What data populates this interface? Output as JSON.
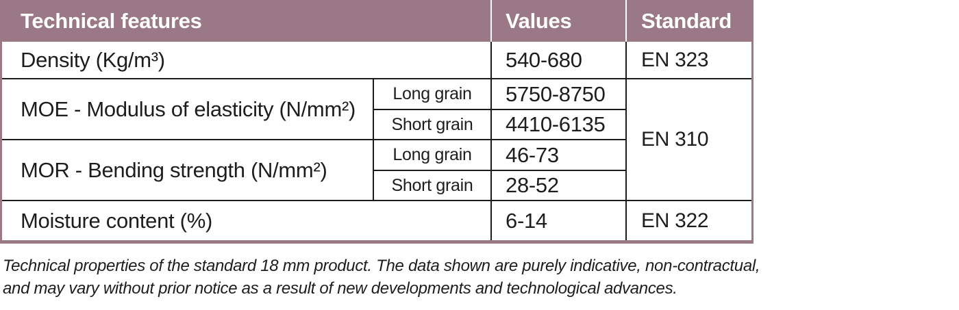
{
  "table": {
    "header": {
      "features": "Technical features",
      "values": "Values",
      "standard": "Standard"
    },
    "density": {
      "label": "Density (Kg/m³)",
      "value": "540-680",
      "standard": "EN 323"
    },
    "moe": {
      "label": "MOE - Modulus of elasticity (N/mm²)",
      "rows": [
        {
          "grain": "Long grain",
          "value": "5750-8750"
        },
        {
          "grain": "Short grain",
          "value": "4410-6135"
        }
      ]
    },
    "mor": {
      "label": "MOR - Bending strength (N/mm²)",
      "rows": [
        {
          "grain": "Long grain",
          "value": "46-73"
        },
        {
          "grain": "Short grain",
          "value": "28-52"
        }
      ]
    },
    "moe_mor_standard": "EN 310",
    "moisture": {
      "label": "Moisture content (%)",
      "value": "6-14",
      "standard": "EN 322"
    }
  },
  "footnote": {
    "line1": "Technical properties of the standard 18 mm product. The data shown are purely indicative, non-contractual,",
    "line2": "and may vary without prior notice as a result of new developments and technological advances."
  },
  "colors": {
    "header_bg": "#9a7886",
    "header_text": "#ffffff",
    "frame": "#9a7886",
    "grid": "#1b1b1b",
    "text": "#1d1d1b"
  }
}
